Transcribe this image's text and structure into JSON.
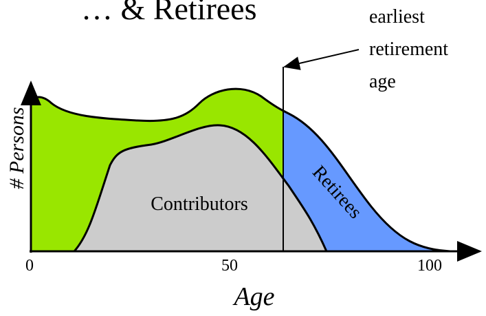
{
  "title": "… & Retirees",
  "annotation": {
    "lines": [
      "earliest",
      "retirement",
      "age"
    ]
  },
  "y_axis": {
    "label": "# Persons"
  },
  "x_axis": {
    "label": "Age",
    "ticks": [
      0,
      50,
      100
    ]
  },
  "regions": {
    "contributors": "Contributors",
    "retirees": "Retirees"
  }
}
